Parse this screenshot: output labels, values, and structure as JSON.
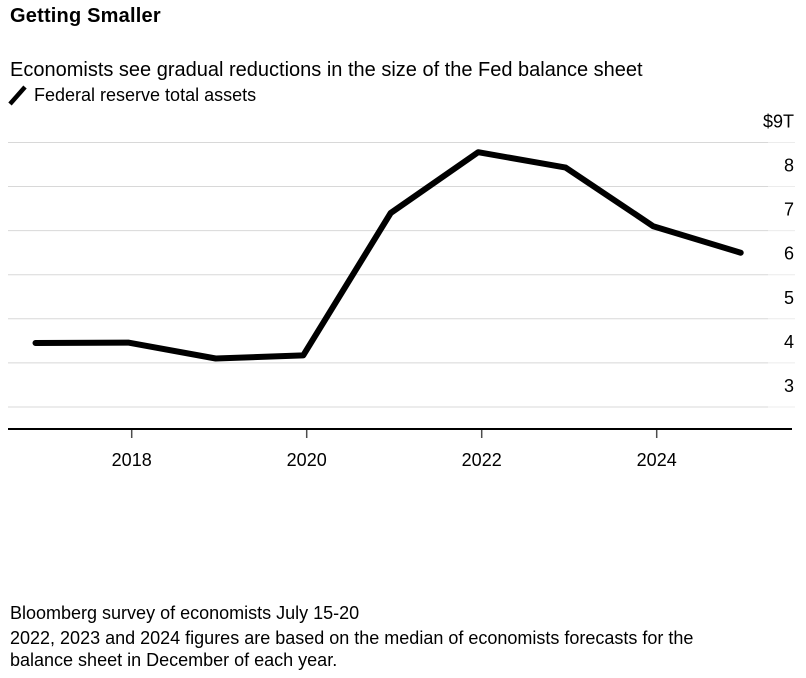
{
  "header": {
    "title": "Getting Smaller",
    "subtitle": "Economists see gradual reductions in the size of the Fed balance sheet",
    "legend": {
      "mark": "line-sample-slash",
      "series_label": "Federal reserve total assets"
    }
  },
  "chart_data": {
    "type": "line",
    "title": "Getting Smaller",
    "unit": "USD trillions",
    "series": [
      {
        "name": "Federal reserve total assets",
        "color": "#000000",
        "points": [
          {
            "x": 2016.9,
            "period": "Dec 2016",
            "value": 4.45
          },
          {
            "x": 2017.96,
            "period": "Dec 2017",
            "value": 4.46
          },
          {
            "x": 2018.96,
            "period": "Dec 2018",
            "value": 4.1
          },
          {
            "x": 2019.96,
            "period": "Dec 2019",
            "value": 4.17
          },
          {
            "x": 2020.96,
            "period": "Dec 2020",
            "value": 7.4
          },
          {
            "x": 2021.96,
            "period": "Dec 2021",
            "value": 8.78
          },
          {
            "x": 2022.96,
            "period": "Dec 2022",
            "value": 8.43
          },
          {
            "x": 2023.96,
            "period": "Dec 2023",
            "value": 7.1
          },
          {
            "x": 2024.96,
            "period": "Dec 2024",
            "value": 6.5
          }
        ]
      }
    ],
    "x_ticks": [
      {
        "value": 2018,
        "label": "2018"
      },
      {
        "value": 2020,
        "label": "2020"
      },
      {
        "value": 2022,
        "label": "2022"
      },
      {
        "value": 2024,
        "label": "2024"
      }
    ],
    "y_ticks": [
      {
        "value": 3,
        "label": "3"
      },
      {
        "value": 4,
        "label": "4"
      },
      {
        "value": 5,
        "label": "5"
      },
      {
        "value": 6,
        "label": "6"
      },
      {
        "value": 7,
        "label": "7"
      },
      {
        "value": 8,
        "label": "8"
      },
      {
        "value": 9,
        "label": "$9T"
      }
    ],
    "ylim": [
      2.5,
      9.5
    ],
    "xlim": [
      2016.6,
      2025.25
    ],
    "grid": "horizontal",
    "legend_position": "top-left"
  },
  "footer": {
    "source_line": "Bloomberg survey of economists July 15-20",
    "note_lines": [
      "2022, 2023 and 2024 figures are based on the median of economists forecasts for the",
      "balance sheet in December of each year."
    ]
  },
  "colors": {
    "background": "#ffffff",
    "text": "#000000",
    "line": "#000000",
    "grid": "#d8d8d8",
    "grid_light": "#ececec",
    "axis": "#000000",
    "tick": "#4d4d4d"
  }
}
